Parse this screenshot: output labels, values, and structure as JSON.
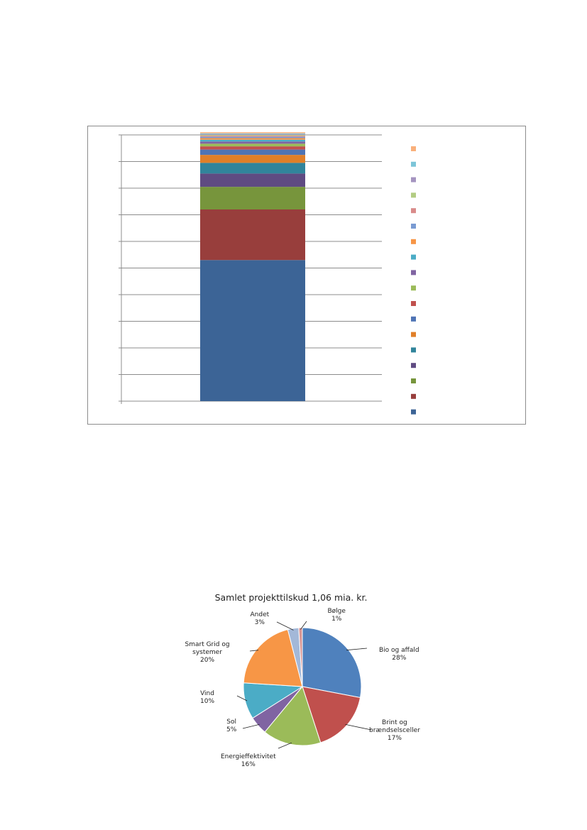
{
  "chart_data": [
    {
      "type": "bar",
      "stacked": true,
      "categories": [
        ""
      ],
      "series_colors": [
        "#3c6496",
        "#983e3c",
        "#77953c",
        "#5f4b82",
        "#31849b",
        "#e07f29",
        "#4f74b5",
        "#c0504d",
        "#9bbb59",
        "#8064a2",
        "#4bacc6",
        "#f79646",
        "#7a9bd2",
        "#d98b8a",
        "#b3cc83",
        "#a594c0",
        "#7cc5d8",
        "#f9b07b"
      ],
      "series_values": [
        53,
        19,
        8.5,
        5,
        4,
        3,
        2,
        1.2,
        1,
        0.8,
        0.7,
        0.6,
        0.5,
        0.4,
        0.3,
        0.3,
        0.3,
        0.4
      ],
      "legend_colors": [
        "#f9b07b",
        "#7cc5d8",
        "#a594c0",
        "#b3cc83",
        "#d98b8a",
        "#7a9bd2",
        "#f79646",
        "#4bacc6",
        "#8064a2",
        "#9bbb59",
        "#c0504d",
        "#4f74b5",
        "#e07f29",
        "#31849b",
        "#5f4b82",
        "#77953c",
        "#983e3c",
        "#3c6496"
      ],
      "ylim": [
        0,
        100
      ],
      "gridlines": 10,
      "grid": true,
      "legend_position": "right"
    },
    {
      "type": "pie",
      "title": "Samlet projekttilskud 1,06 mia. kr.",
      "slices": [
        {
          "label": [
            "Bio og affald"
          ],
          "pct_text": "28%",
          "value": 28,
          "color": "#4f81bd"
        },
        {
          "label": [
            "Brint og",
            "brændselsceller"
          ],
          "pct_text": "17%",
          "value": 17,
          "color": "#c0504d"
        },
        {
          "label": [
            "Energieffektivitet"
          ],
          "pct_text": "16%",
          "value": 16,
          "color": "#9bbb59"
        },
        {
          "label": [
            "Sol"
          ],
          "pct_text": "5%",
          "value": 5,
          "color": "#8064a2"
        },
        {
          "label": [
            "Vind"
          ],
          "pct_text": "10%",
          "value": 10,
          "color": "#4bacc6"
        },
        {
          "label": [
            "Smart Grid og",
            "systemer"
          ],
          "pct_text": "20%",
          "value": 20,
          "color": "#f79646"
        },
        {
          "label": [
            "Andet"
          ],
          "pct_text": "3%",
          "value": 3,
          "color": "#a3b8d8"
        },
        {
          "label": [
            "Bølge"
          ],
          "pct_text": "1%",
          "value": 1,
          "color": "#d99694"
        }
      ]
    }
  ]
}
